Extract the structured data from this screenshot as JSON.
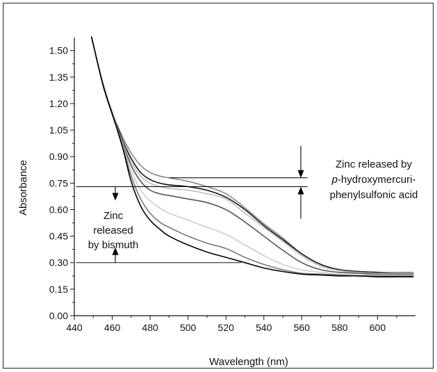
{
  "chart_data": {
    "type": "line",
    "title": "",
    "xlabel": "Wavelength (nm)",
    "ylabel": "Absorbance",
    "xlim": [
      440,
      620
    ],
    "ylim": [
      0.0,
      1.55
    ],
    "x_ticks": [
      440,
      460,
      480,
      500,
      520,
      540,
      560,
      580,
      600
    ],
    "x_tick_labels": [
      "440",
      "460",
      "480",
      "500",
      "520",
      "540",
      "560",
      "580",
      "600"
    ],
    "y_ticks": [
      0.0,
      0.15,
      0.3,
      0.45,
      0.6,
      0.75,
      0.9,
      1.05,
      1.2,
      1.35,
      1.5
    ],
    "y_tick_labels": [
      "0.00",
      "0.15",
      "0.30",
      "0.45",
      "0.60",
      "0.75",
      "0.90",
      "1.05",
      "1.20",
      "1.35",
      "1.50"
    ],
    "grid": false,
    "series": [
      {
        "color": "#888888",
        "x": [
          449,
          455,
          460,
          463,
          466,
          470,
          475,
          480,
          485,
          490,
          500,
          510,
          520,
          530,
          540,
          550,
          560,
          570,
          580,
          590,
          600,
          610,
          619
        ],
        "y": [
          1.58,
          1.32,
          1.15,
          1.07,
          1.0,
          0.92,
          0.85,
          0.81,
          0.79,
          0.78,
          0.76,
          0.73,
          0.69,
          0.61,
          0.52,
          0.44,
          0.35,
          0.29,
          0.26,
          0.25,
          0.245,
          0.245,
          0.245
        ]
      },
      {
        "color": "#111111",
        "x": [
          449,
          455,
          460,
          463,
          466,
          470,
          475,
          480,
          485,
          490,
          500,
          510,
          520,
          530,
          540,
          550,
          560,
          570,
          580,
          590,
          600,
          610,
          619
        ],
        "y": [
          1.58,
          1.31,
          1.14,
          1.06,
          0.98,
          0.89,
          0.81,
          0.77,
          0.75,
          0.74,
          0.73,
          0.71,
          0.67,
          0.6,
          0.51,
          0.43,
          0.35,
          0.29,
          0.26,
          0.25,
          0.245,
          0.24,
          0.24
        ]
      },
      {
        "color": "#bbbbbb",
        "x": [
          449,
          455,
          460,
          463,
          466,
          470,
          475,
          480,
          485,
          490,
          500,
          510,
          520,
          530,
          540,
          550,
          560,
          570,
          580,
          590,
          600,
          610,
          619
        ],
        "y": [
          1.58,
          1.31,
          1.14,
          1.05,
          0.97,
          0.87,
          0.79,
          0.75,
          0.73,
          0.72,
          0.71,
          0.69,
          0.66,
          0.58,
          0.5,
          0.42,
          0.34,
          0.28,
          0.255,
          0.245,
          0.24,
          0.24,
          0.24
        ]
      },
      {
        "color": "#555555",
        "x": [
          449,
          455,
          460,
          463,
          466,
          470,
          475,
          480,
          485,
          490,
          500,
          510,
          520,
          530,
          540,
          550,
          560,
          570,
          580,
          590,
          600,
          610,
          619
        ],
        "y": [
          1.58,
          1.31,
          1.14,
          1.05,
          0.96,
          0.85,
          0.76,
          0.71,
          0.69,
          0.68,
          0.66,
          0.64,
          0.6,
          0.53,
          0.45,
          0.37,
          0.3,
          0.26,
          0.245,
          0.24,
          0.235,
          0.235,
          0.235
        ]
      },
      {
        "color": "#cccccc",
        "x": [
          449,
          455,
          460,
          463,
          466,
          470,
          475,
          480,
          485,
          490,
          500,
          510,
          520,
          530,
          540,
          550,
          560,
          570,
          580,
          590,
          600,
          610,
          619
        ],
        "y": [
          1.58,
          1.31,
          1.14,
          1.05,
          0.95,
          0.82,
          0.71,
          0.65,
          0.61,
          0.58,
          0.54,
          0.5,
          0.46,
          0.4,
          0.34,
          0.29,
          0.26,
          0.245,
          0.235,
          0.23,
          0.23,
          0.23,
          0.23
        ]
      },
      {
        "color": "#777777",
        "x": [
          449,
          455,
          460,
          463,
          466,
          470,
          475,
          480,
          485,
          490,
          500,
          510,
          520,
          530,
          540,
          550,
          560,
          570,
          580,
          590,
          600,
          610,
          619
        ],
        "y": [
          1.58,
          1.31,
          1.14,
          1.05,
          0.94,
          0.79,
          0.66,
          0.58,
          0.53,
          0.5,
          0.45,
          0.41,
          0.38,
          0.33,
          0.29,
          0.26,
          0.24,
          0.235,
          0.23,
          0.225,
          0.225,
          0.225,
          0.225
        ]
      },
      {
        "color": "#000000",
        "x": [
          449,
          455,
          460,
          463,
          466,
          470,
          475,
          480,
          485,
          490,
          500,
          510,
          520,
          530,
          540,
          550,
          560,
          570,
          580,
          590,
          600,
          610,
          619
        ],
        "y": [
          1.58,
          1.31,
          1.14,
          1.04,
          0.93,
          0.76,
          0.62,
          0.54,
          0.49,
          0.45,
          0.4,
          0.36,
          0.33,
          0.3,
          0.27,
          0.25,
          0.235,
          0.23,
          0.225,
          0.225,
          0.22,
          0.22,
          0.22
        ]
      }
    ],
    "reference_lines": [
      {
        "y": 0.78,
        "x_from": 490,
        "x_to": 563,
        "color": "#111111"
      },
      {
        "y": 0.73,
        "x_from": 441,
        "x_to": 563,
        "color": "#111111"
      },
      {
        "y": 0.3,
        "x_from": 441,
        "x_to": 528,
        "color": "#111111"
      }
    ],
    "annotations": [
      {
        "lines": [
          "Zinc released by",
          "p-hydroxymercuri-",
          "phenylsulfonic acid"
        ],
        "italic_prefix": "p"
      },
      {
        "lines": [
          "Zinc",
          "released",
          "by bismuth"
        ]
      }
    ]
  }
}
